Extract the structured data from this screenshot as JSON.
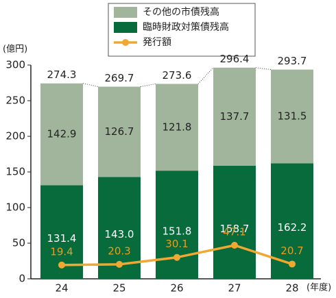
{
  "chart_data": {
    "type": "bar",
    "y_unit": "(億円)",
    "x_unit": "(年度)",
    "categories": [
      "24",
      "25",
      "26",
      "27",
      "28"
    ],
    "series": [
      {
        "name": "その他の市債残高",
        "color": "#a0b59b",
        "values": [
          142.9,
          126.7,
          121.8,
          137.7,
          131.5
        ]
      },
      {
        "name": "臨時財政対策債残高",
        "color": "#086b3b",
        "values": [
          131.4,
          143.0,
          151.8,
          158.7,
          162.2
        ],
        "value_labels": [
          "131.4",
          "143.0",
          "151.8",
          "158.7",
          "162.2"
        ]
      },
      {
        "name": "発行額",
        "type": "line",
        "color": "#f0a832",
        "values": [
          19.4,
          20.3,
          30.1,
          47.1,
          20.7
        ]
      }
    ],
    "totals": [
      274.3,
      269.7,
      273.6,
      296.4,
      293.7
    ],
    "ylim": [
      0,
      300
    ],
    "yticks": [
      0,
      50,
      100,
      150,
      200,
      250,
      300
    ],
    "grid": false
  }
}
